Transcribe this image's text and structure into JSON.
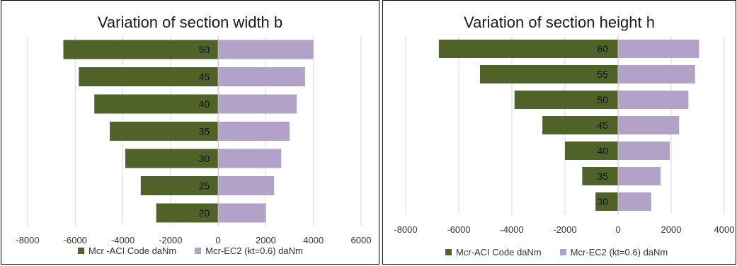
{
  "colors": {
    "aci": "#4f6228",
    "ec2": "#b3a2c7",
    "grid": "#d9d9d9"
  },
  "chart_data": [
    {
      "type": "bar",
      "orientation": "horizontal",
      "title": "Variation of section width b",
      "categories": [
        "50",
        "45",
        "40",
        "35",
        "30",
        "25",
        "20"
      ],
      "series": [
        {
          "name": "Mcr -ACI Code daNm",
          "values": [
            -6500,
            -5850,
            -5200,
            -4550,
            -3900,
            -3250,
            -2600
          ]
        },
        {
          "name": "Mcr-EC2 (kt=0.6) daNm",
          "values": [
            4000,
            3650,
            3300,
            3000,
            2650,
            2350,
            2000
          ]
        }
      ],
      "xlim": [
        -8000,
        6000
      ],
      "xticks": [
        -8000,
        -6000,
        -4000,
        -2000,
        0,
        2000,
        4000,
        6000
      ],
      "xtick_labels": [
        "-8000",
        "-6000",
        "-4000",
        "-2000",
        "0",
        "2000",
        "4000",
        "6000"
      ],
      "grid": true,
      "legend_position": "bottom"
    },
    {
      "type": "bar",
      "orientation": "horizontal",
      "title": "Variation of section height h",
      "categories": [
        "60",
        "55",
        "50",
        "45",
        "40",
        "35",
        "30"
      ],
      "series": [
        {
          "name": "Mcr-ACI Code daNm",
          "values": [
            -6750,
            -5200,
            -3900,
            -2850,
            -2000,
            -1350,
            -850
          ]
        },
        {
          "name": "Mcr-EC2 (kt=0.6) daNm",
          "values": [
            3050,
            2900,
            2650,
            2300,
            1950,
            1600,
            1250
          ]
        }
      ],
      "xlim": [
        -8000,
        4000
      ],
      "xticks": [
        -8000,
        -6000,
        -4000,
        -2000,
        0,
        2000,
        4000
      ],
      "xtick_labels": [
        "-8000",
        "-6000",
        "-4000",
        "-2000",
        "0",
        "2000",
        "4000"
      ],
      "grid": true,
      "legend_position": "bottom"
    }
  ]
}
